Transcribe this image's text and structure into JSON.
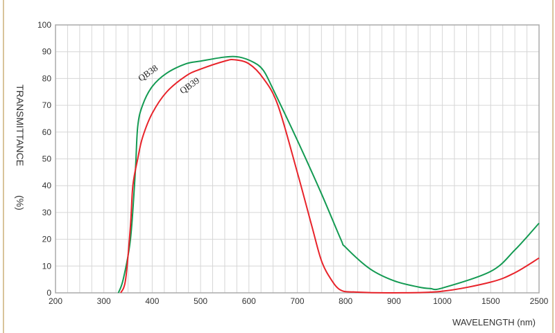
{
  "chart_data": {
    "type": "line",
    "title": "",
    "xlabel": "WAVELENGTH (nm)",
    "ylabel": "TRANSMITTANCE (%)",
    "ylabel_main": "TRANSMITTANCE",
    "ylabel_unit": "(%)",
    "x_ticks": [
      200,
      300,
      400,
      500,
      600,
      700,
      800,
      900,
      1000,
      1500,
      2500
    ],
    "x_tick_labels": [
      "200",
      "300",
      "400",
      "500",
      "600",
      "700",
      "800",
      "900",
      "1000",
      "1500",
      "2500"
    ],
    "y_ticks": [
      0,
      10,
      20,
      30,
      40,
      50,
      60,
      70,
      80,
      90,
      100
    ],
    "y_tick_labels": [
      "0",
      "10",
      "20",
      "30",
      "40",
      "50",
      "60",
      "70",
      "80",
      "90",
      "100"
    ],
    "xlim": [
      200,
      2500
    ],
    "ylim": [
      0,
      100
    ],
    "x_scale": "piecewise-linear between tick labels",
    "grid": true,
    "series": [
      {
        "name": "QB38",
        "color": "#139a52",
        "x": [
          330,
          340,
          355,
          365,
          370,
          380,
          400,
          430,
          470,
          500,
          550,
          580,
          610,
          630,
          650,
          700,
          750,
          790,
          800,
          850,
          900,
          950,
          975,
          1000,
          1500,
          2000,
          2500
        ],
        "y": [
          0,
          5,
          20,
          45,
          62,
          70,
          77,
          82,
          85.5,
          86.5,
          88,
          88,
          86,
          83,
          76,
          57,
          37,
          20,
          17,
          9,
          4.5,
          2.2,
          1.6,
          1.8,
          8,
          16,
          26
        ]
      },
      {
        "name": "QB39",
        "color": "#e8232a",
        "x": [
          335,
          345,
          355,
          360,
          370,
          380,
          400,
          430,
          470,
          500,
          550,
          570,
          600,
          630,
          660,
          700,
          730,
          750,
          770,
          790,
          820,
          900,
          1000,
          1500,
          2000,
          2500
        ],
        "y": [
          0,
          5,
          25,
          40,
          50,
          58,
          67,
          75,
          81,
          83.5,
          86.5,
          87,
          85.5,
          80,
          70,
          45,
          25,
          12,
          5,
          1,
          0.3,
          0,
          0.6,
          4,
          7.5,
          13
        ]
      }
    ]
  }
}
